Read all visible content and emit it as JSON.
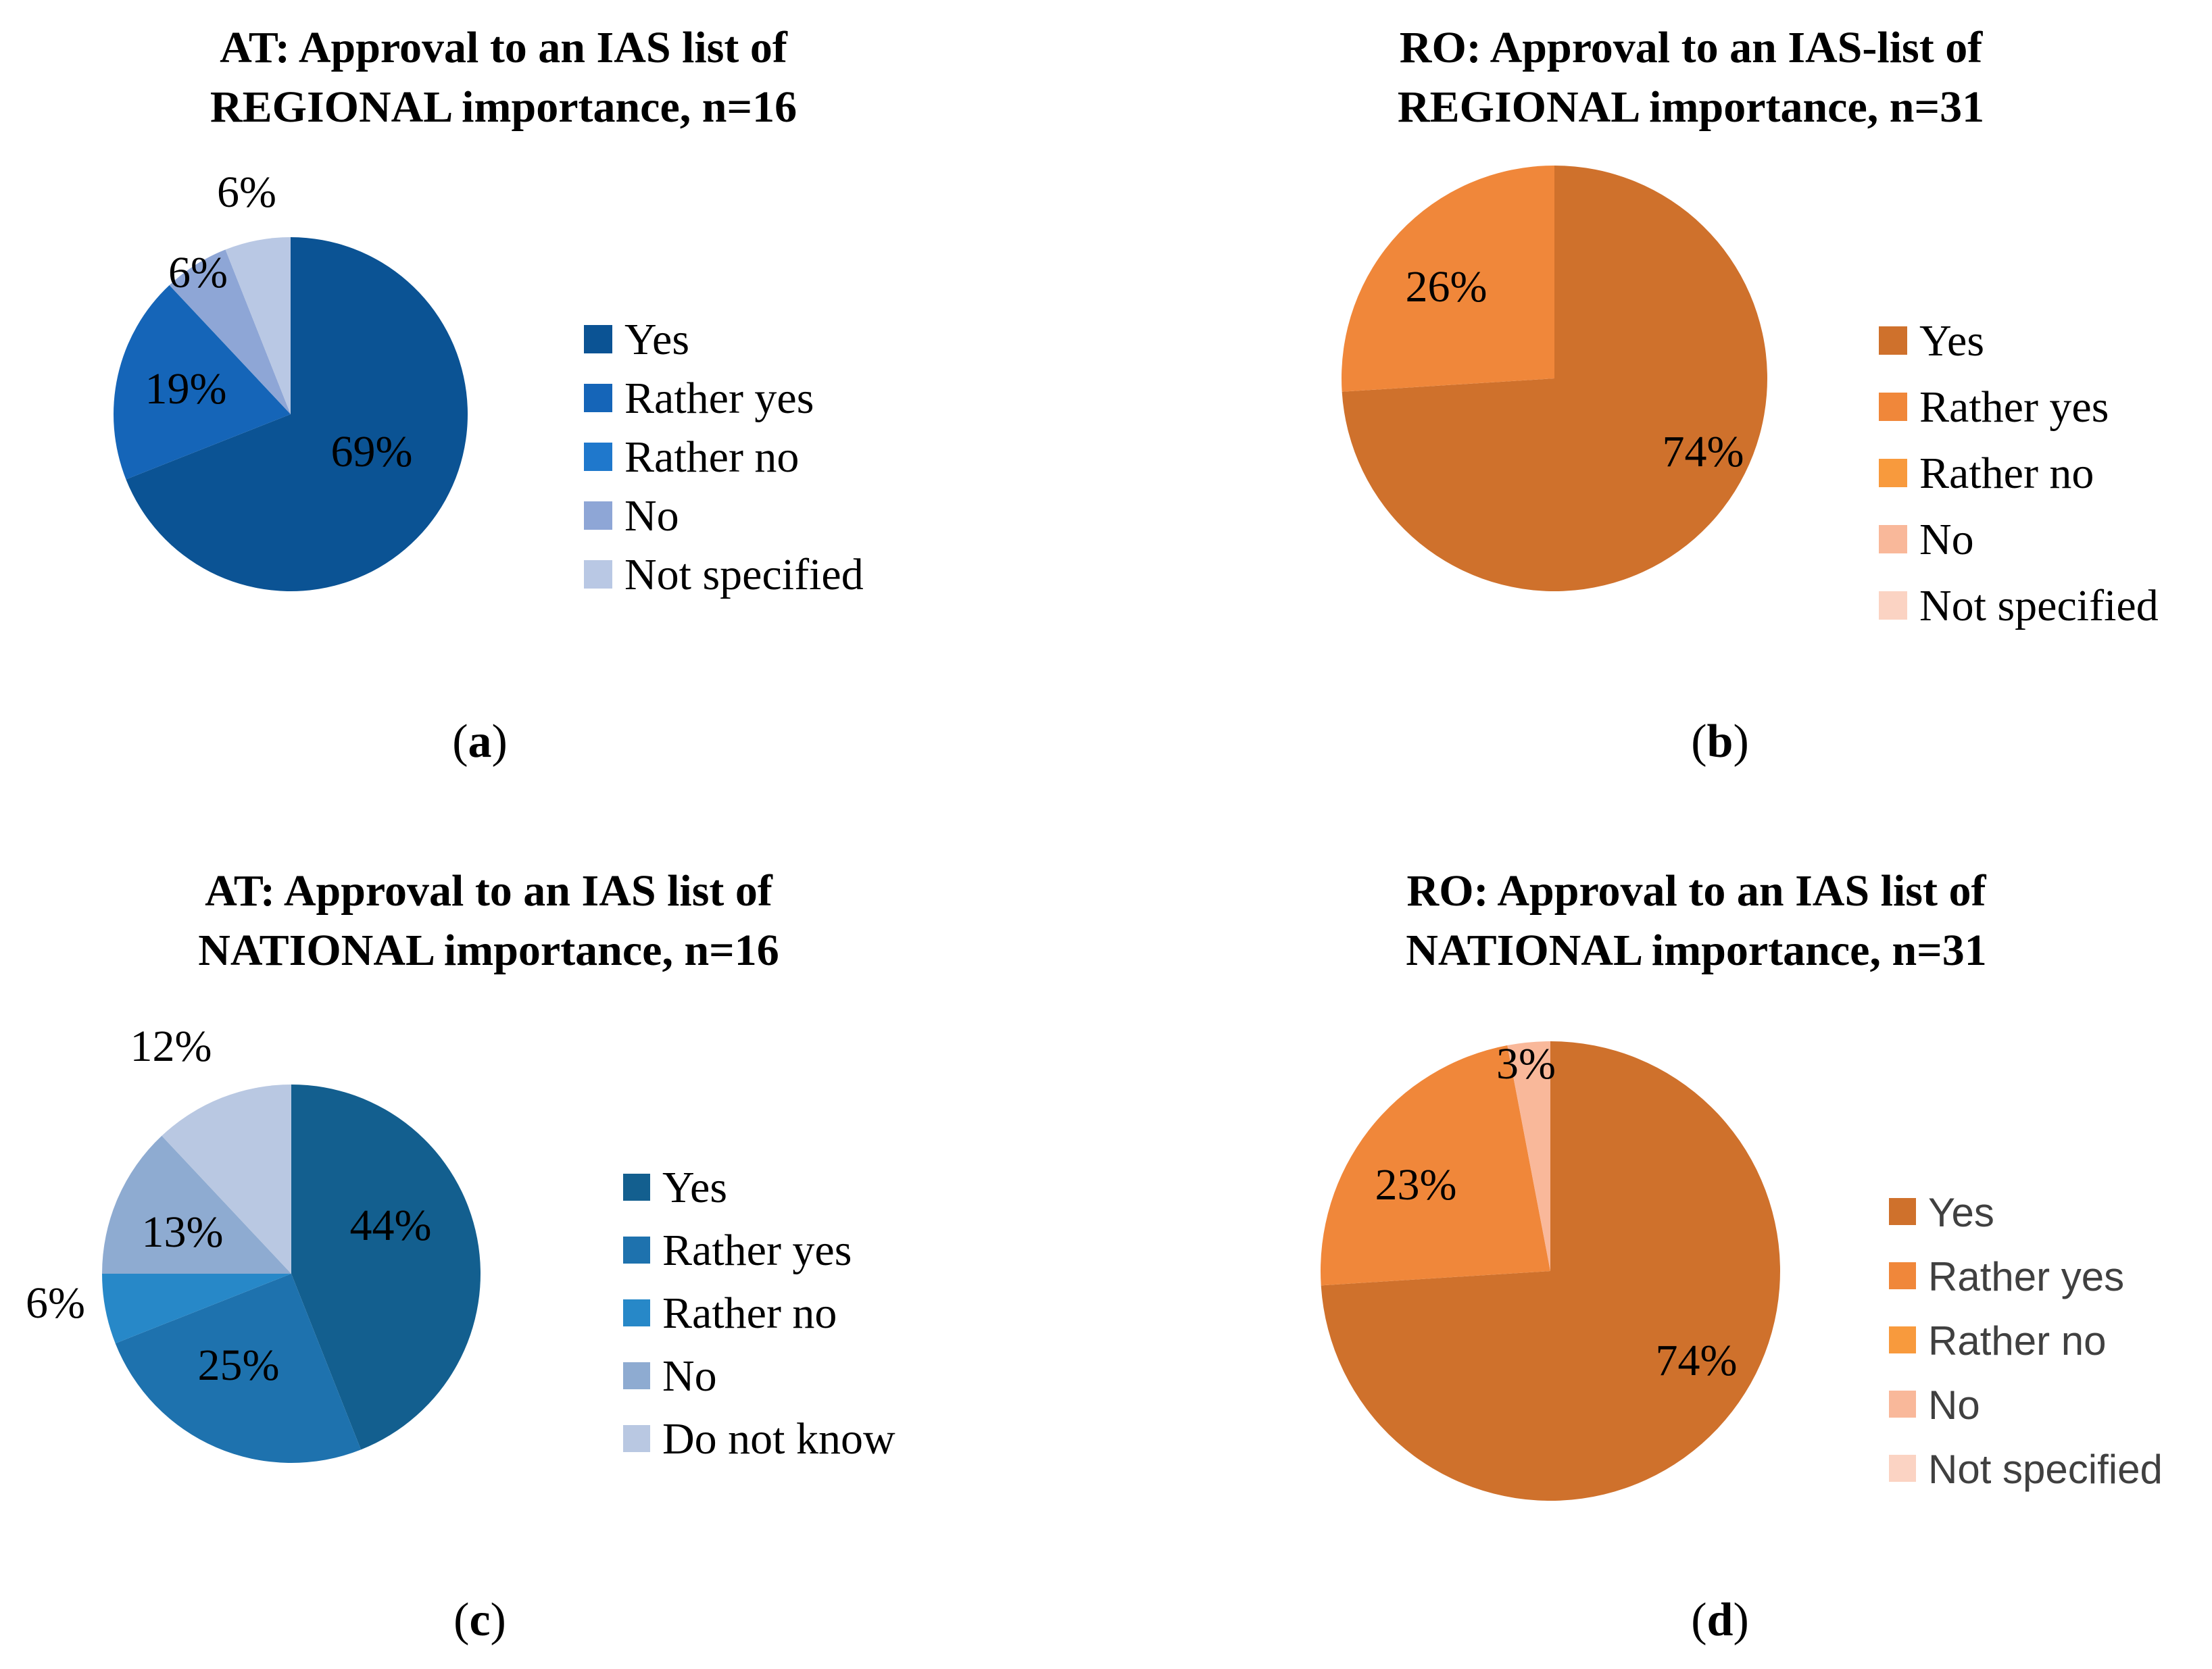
{
  "chart_data": [
    {
      "type": "pie",
      "panel": "a",
      "title_lines": [
        "AT: Approval to an IAS list of",
        "REGIONAL importance, n=16"
      ],
      "categories": [
        "Yes",
        "Rather yes",
        "Rather no",
        "No",
        "Not specified"
      ],
      "values": [
        69,
        19,
        0,
        6,
        6
      ],
      "labels": [
        "69%",
        "19%",
        "",
        "6%",
        "6%"
      ],
      "colors": [
        "#0B5394",
        "#1565B8",
        "#1F78CC",
        "#8EA6D6",
        "#B9C8E4"
      ],
      "legend_position": "right",
      "caption_open": "(",
      "caption_letter": "a",
      "caption_close": ")"
    },
    {
      "type": "pie",
      "panel": "b",
      "title_lines": [
        "RO: Approval to an IAS-list of",
        "REGIONAL importance, n=31"
      ],
      "categories": [
        "Yes",
        "Rather yes",
        "Rather no",
        "No",
        "Not specified"
      ],
      "values": [
        74,
        26,
        0,
        0,
        0
      ],
      "labels": [
        "74%",
        "26%",
        "",
        "",
        ""
      ],
      "colors": [
        "#CF712C",
        "#F0873A",
        "#F89A3D",
        "#F9B89A",
        "#FBD3C3"
      ],
      "legend_position": "right",
      "caption_open": "(",
      "caption_letter": "b",
      "caption_close": ")"
    },
    {
      "type": "pie",
      "panel": "c",
      "title_lines": [
        "AT: Approval to an IAS list of",
        "NATIONAL importance, n=16"
      ],
      "categories": [
        "Yes",
        "Rather yes",
        "Rather no",
        "No",
        "Do not know"
      ],
      "values": [
        44,
        25,
        6,
        13,
        12
      ],
      "labels": [
        "44%",
        "25%",
        "6%",
        "13%",
        "12%"
      ],
      "colors": [
        "#135F8F",
        "#1E72AE",
        "#2788C8",
        "#8EABD1",
        "#B9C8E2"
      ],
      "legend_position": "right",
      "caption_open": "(",
      "caption_letter": "c",
      "caption_close": ")"
    },
    {
      "type": "pie",
      "panel": "d",
      "title_lines": [
        "RO: Approval to an IAS list of",
        "NATIONAL importance, n=31"
      ],
      "categories": [
        "Yes",
        "Rather yes",
        "Rather no",
        "No",
        "Not specified"
      ],
      "values": [
        74,
        23,
        0,
        3,
        0
      ],
      "labels": [
        "74%",
        "23%",
        "",
        "3%",
        ""
      ],
      "colors": [
        "#CF712C",
        "#F0873A",
        "#F89A3D",
        "#F9B89A",
        "#FBD3C3"
      ],
      "legend_position": "right",
      "caption_open": "(",
      "caption_letter": "d",
      "caption_close": ")"
    }
  ]
}
